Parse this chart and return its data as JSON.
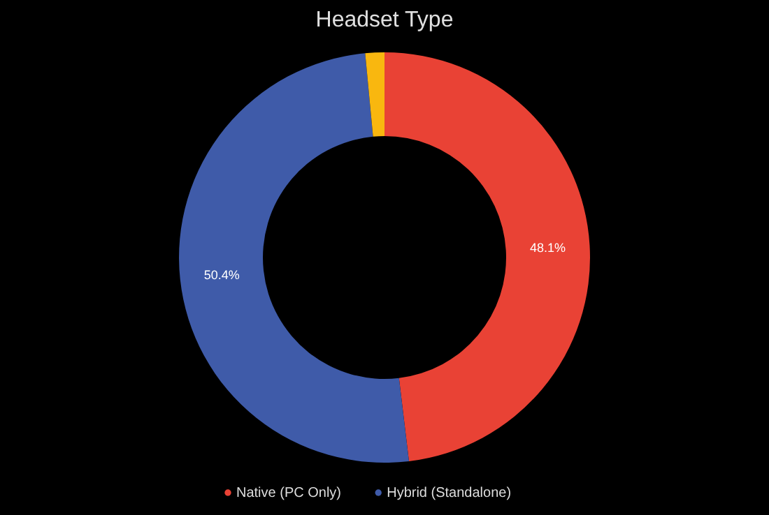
{
  "chart_data": {
    "type": "donut",
    "title": "Headset Type",
    "categories": [
      "Native (PC Only)",
      "Hybrid (Standalone)",
      null
    ],
    "values": [
      48.1,
      50.4,
      1.5
    ],
    "colors": [
      "#e94235",
      "#3f5ba9",
      "#f9b70f"
    ],
    "value_labels": [
      "48.1%",
      "50.4%",
      null
    ],
    "legend": "bottom"
  }
}
